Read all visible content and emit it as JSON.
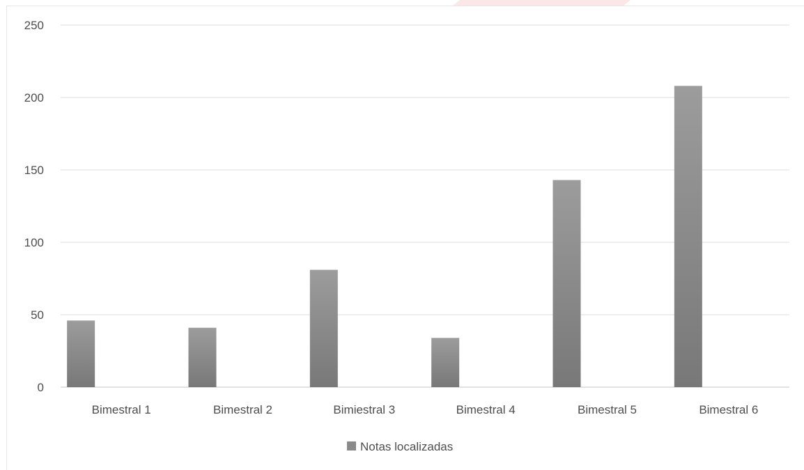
{
  "chart_data": {
    "type": "bar",
    "categories": [
      "Bimestral 1",
      "Bimestral 2",
      "Bimiestral 3",
      "Bimestral 4",
      "Bimestral 5",
      "Bimestral 6"
    ],
    "series": [
      {
        "name": "Notas localizadas",
        "values": [
          46,
          41,
          81,
          34,
          143,
          208
        ],
        "color": "#8a8a8a"
      }
    ],
    "ylim": [
      0,
      250
    ],
    "yticks": [
      0,
      50,
      100,
      150,
      200,
      250
    ],
    "grid": true,
    "legend_position": "bottom",
    "colors": {
      "bar_top": "#9c9c9c",
      "bar_bottom": "#787878",
      "accent_bar": "#e23b3b"
    }
  }
}
